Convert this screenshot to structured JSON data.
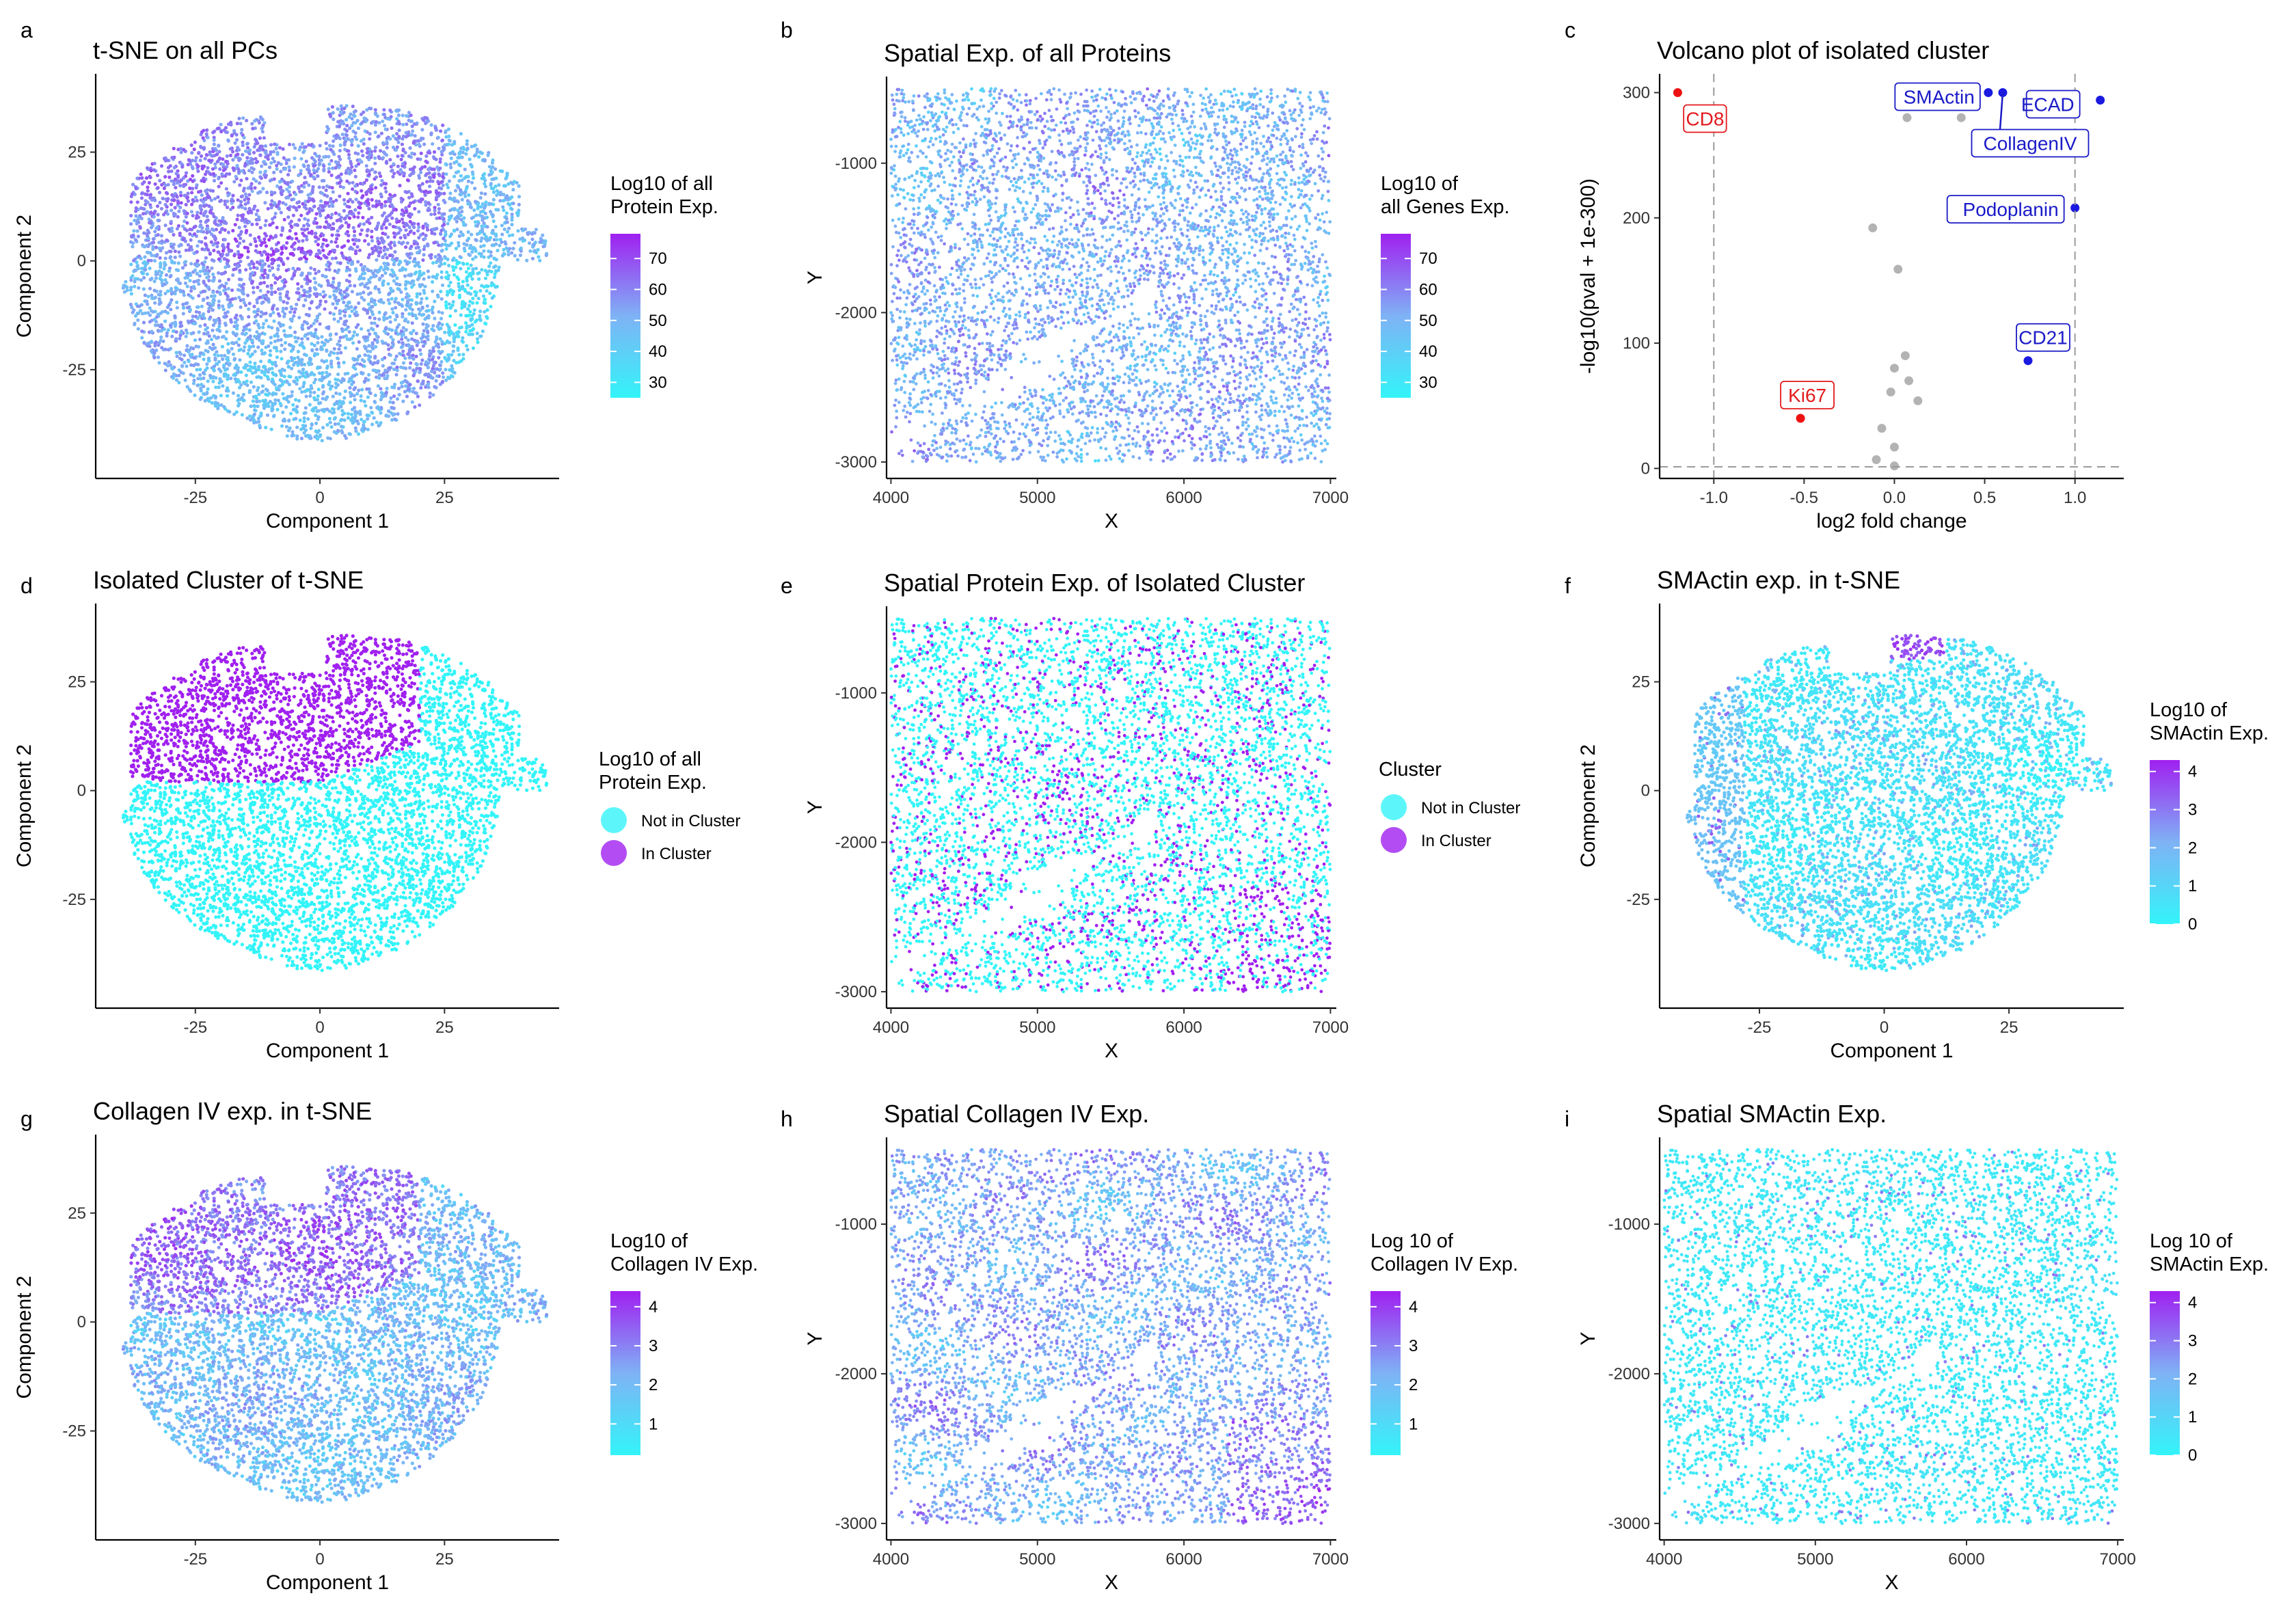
{
  "figure": {
    "colors": {
      "low": "#33F4F9",
      "mid": "#7FB2F5",
      "high": "#A020F0",
      "red": "#EE1111",
      "blue": "#1A1AE0",
      "gray": "#B3B3B3"
    }
  },
  "chart_data": [
    {
      "panel": "a",
      "type": "scatter",
      "kind": "tsne-gradient",
      "title": "t-SNE on all PCs",
      "xlabel": "Component 1",
      "ylabel": "Component 2",
      "xlim": [
        -45,
        48
      ],
      "ylim": [
        -50,
        43
      ],
      "xticks": [
        "-25",
        "0",
        "25"
      ],
      "yticks": [
        "25",
        "0",
        "-25"
      ],
      "legend": {
        "title": [
          "Log10  of all",
          "Protein Exp."
        ],
        "labels": [
          "70",
          "60",
          "50",
          "40",
          "30"
        ],
        "range": [
          25,
          78
        ]
      }
    },
    {
      "panel": "b",
      "type": "scatter",
      "kind": "spatial-gradient",
      "title": "Spatial Exp. of all Proteins",
      "xlabel": "X",
      "ylabel": "Y",
      "xlim": [
        3970,
        7040
      ],
      "ylim": [
        -3110,
        -420
      ],
      "xticks": [
        "4000",
        "5000",
        "6000",
        "7000"
      ],
      "yticks": [
        "-1000",
        "-2000",
        "-3000"
      ],
      "legend": {
        "title": [
          "Log10 of",
          " all Genes Exp."
        ],
        "labels": [
          "70",
          "60",
          "50",
          "40",
          "30"
        ],
        "range": [
          25,
          78
        ]
      }
    },
    {
      "panel": "c",
      "type": "scatter",
      "kind": "volcano",
      "title": "Volcano plot of isolated cluster",
      "xlabel": "log2 fold change",
      "ylabel": "-log10(pval + 1e-300)",
      "xlim": [
        -1.3,
        1.27
      ],
      "ylim": [
        -8,
        315
      ],
      "xticks": [
        "-1.0",
        "-0.5",
        "0.0",
        "0.5",
        "1.0"
      ],
      "yticks": [
        "300",
        "200",
        "100",
        "0"
      ],
      "thresholds": {
        "x": [
          -1.0,
          1.0
        ],
        "y": 1.3
      },
      "points": [
        {
          "x": -1.2,
          "y": 300,
          "label": "CD8",
          "group": "red"
        },
        {
          "x": -0.52,
          "y": 40,
          "label": "Ki67",
          "group": "red"
        },
        {
          "x": 0.52,
          "y": 300,
          "label": "SMActin",
          "group": "blue"
        },
        {
          "x": 0.6,
          "y": 300,
          "label": "CollagenIV",
          "group": "blue"
        },
        {
          "x": 1.14,
          "y": 294,
          "label": "ECAD",
          "group": "blue"
        },
        {
          "x": 1.0,
          "y": 208,
          "label": "Podoplanin",
          "group": "blue"
        },
        {
          "x": 0.74,
          "y": 86,
          "label": "CD21",
          "group": "blue"
        },
        {
          "x": 0.07,
          "y": 280,
          "group": "gray"
        },
        {
          "x": 0.37,
          "y": 280,
          "group": "gray"
        },
        {
          "x": -0.12,
          "y": 192,
          "group": "gray"
        },
        {
          "x": 0.02,
          "y": 159,
          "group": "gray"
        },
        {
          "x": 0.06,
          "y": 90,
          "group": "gray"
        },
        {
          "x": 0.0,
          "y": 80,
          "group": "gray"
        },
        {
          "x": 0.08,
          "y": 70,
          "group": "gray"
        },
        {
          "x": -0.02,
          "y": 61,
          "group": "gray"
        },
        {
          "x": 0.13,
          "y": 54,
          "group": "gray"
        },
        {
          "x": -0.07,
          "y": 32,
          "group": "gray"
        },
        {
          "x": -0.1,
          "y": 7,
          "group": "gray"
        },
        {
          "x": 0.0,
          "y": 17,
          "group": "gray"
        },
        {
          "x": 0.0,
          "y": 2,
          "group": "gray"
        }
      ]
    },
    {
      "panel": "d",
      "type": "scatter",
      "kind": "tsne-cluster",
      "title": "Isolated Cluster of t-SNE",
      "xlabel": "Component 1",
      "ylabel": "Component 2",
      "xlim": [
        -45,
        48
      ],
      "ylim": [
        -50,
        43
      ],
      "xticks": [
        "-25",
        "0",
        "25"
      ],
      "yticks": [
        "25",
        "0",
        "-25"
      ],
      "legend": {
        "title": [
          "Log10 of all",
          "Protein Exp."
        ],
        "labels": [
          "Not in Cluster",
          "In Cluster"
        ]
      }
    },
    {
      "panel": "e",
      "type": "scatter",
      "kind": "spatial-cluster",
      "title": "Spatial Protein Exp. of Isolated Cluster",
      "xlabel": "X",
      "ylabel": "Y",
      "xlim": [
        3970,
        7040
      ],
      "ylim": [
        -3110,
        -420
      ],
      "xticks": [
        "4000",
        "5000",
        "6000",
        "7000"
      ],
      "yticks": [
        "-1000",
        "-2000",
        "-3000"
      ],
      "legend": {
        "title": [
          "Cluster"
        ],
        "labels": [
          "Not in Cluster",
          "In Cluster"
        ]
      }
    },
    {
      "panel": "f",
      "type": "scatter",
      "kind": "tsne-smactin",
      "title": "SMActin exp. in t-SNE",
      "xlabel": "Component 1",
      "ylabel": "Component 2",
      "xlim": [
        -45,
        48
      ],
      "ylim": [
        -50,
        43
      ],
      "xticks": [
        "-25",
        "0",
        "25"
      ],
      "yticks": [
        "25",
        "0",
        "-25"
      ],
      "legend": {
        "title": [
          "Log10 of",
          "SMActin Exp."
        ],
        "labels": [
          "4",
          "3",
          "2",
          "1",
          "0"
        ],
        "range": [
          0,
          4.3
        ]
      }
    },
    {
      "panel": "g",
      "type": "scatter",
      "kind": "tsne-collagen",
      "title": "Collagen IV  exp. in t-SNE",
      "xlabel": "Component 1",
      "ylabel": "Component 2",
      "xlim": [
        -45,
        48
      ],
      "ylim": [
        -50,
        43
      ],
      "xticks": [
        "-25",
        "0",
        "25"
      ],
      "yticks": [
        "25",
        "0",
        "-25"
      ],
      "legend": {
        "title": [
          "Log10 of",
          "Collagen IV  Exp."
        ],
        "labels": [
          "4",
          "3",
          "2",
          "1"
        ],
        "range": [
          0.2,
          4.4
        ]
      }
    },
    {
      "panel": "h",
      "type": "scatter",
      "kind": "spatial-collagen",
      "title": "Spatial Collagen IV  Exp.",
      "xlabel": "X",
      "ylabel": "Y",
      "xlim": [
        3970,
        7040
      ],
      "ylim": [
        -3110,
        -420
      ],
      "xticks": [
        "4000",
        "5000",
        "6000",
        "7000"
      ],
      "yticks": [
        "-1000",
        "-2000",
        "-3000"
      ],
      "legend": {
        "title": [
          "Log 10 of",
          "Collagen IV  Exp."
        ],
        "labels": [
          "4",
          "3",
          "2",
          "1"
        ],
        "range": [
          0.2,
          4.4
        ]
      }
    },
    {
      "panel": "i",
      "type": "scatter",
      "kind": "spatial-smactin",
      "title": "Spatial SMActin Exp.",
      "xlabel": "X",
      "ylabel": "Y",
      "xlim": [
        3970,
        7040
      ],
      "ylim": [
        -3110,
        -420
      ],
      "xticks": [
        "4000",
        "5000",
        "6000",
        "7000"
      ],
      "yticks": [
        "-1000",
        "-2000",
        "-3000"
      ],
      "legend": {
        "title": [
          "Log 10 of",
          "SMActin Exp."
        ],
        "labels": [
          "4",
          "3",
          "2",
          "1",
          "0"
        ],
        "range": [
          0,
          4.3
        ]
      }
    }
  ]
}
